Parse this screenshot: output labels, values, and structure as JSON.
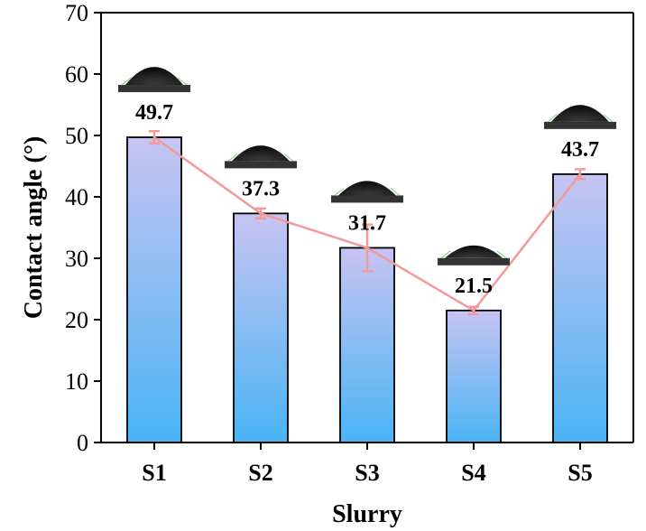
{
  "chart_data": {
    "type": "bar",
    "categories": [
      "S1",
      "S2",
      "S3",
      "S4",
      "S5"
    ],
    "values": [
      49.7,
      37.3,
      31.7,
      21.5,
      43.7
    ],
    "errors": [
      1.0,
      0.8,
      3.8,
      0.6,
      0.8
    ],
    "value_labels": [
      "49.7",
      "37.3",
      "31.7",
      "21.5",
      "43.7"
    ],
    "xlabel": "Slurry",
    "ylabel": "Contact angle (°)",
    "ylim": [
      0,
      70
    ],
    "yticks": [
      0,
      10,
      20,
      30,
      40,
      50,
      60,
      70
    ],
    "grid": false,
    "overlay_line": true,
    "droplet_images": true,
    "colors": {
      "bar_top": "#c7c4f2",
      "bar_bottom": "#4ab4f5",
      "bar_edge": "#000000",
      "line": "#f29a9a",
      "droplet": "#1a1a1a",
      "substrate": "#333333",
      "droplet_highlight": "#7fd27f"
    }
  }
}
